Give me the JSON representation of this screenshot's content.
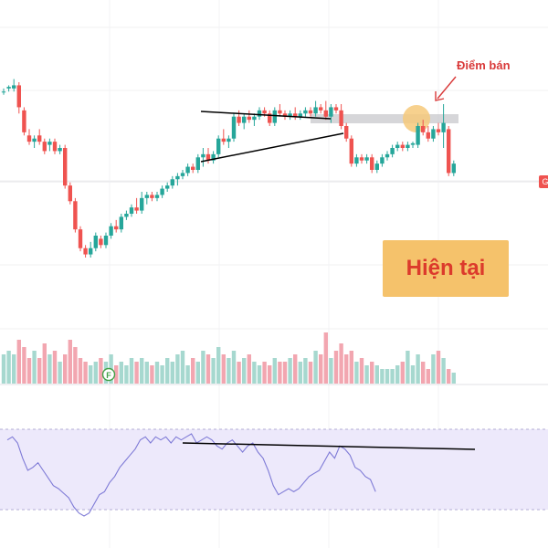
{
  "annotations": {
    "sell_point": "Điểm bán",
    "current": "Hiện tại",
    "marker": "F",
    "edge_badge": "G"
  },
  "colors": {
    "up": "#26a69a",
    "down": "#ef5350",
    "up_volume": "#a6d8cf",
    "down_volume": "#f2a6b0",
    "rsi_line": "#7e7ad6",
    "rsi_band": "#ede9fb",
    "trendline": "#000000",
    "resistance_zone": "#c8c8cc",
    "highlight_circle": "#f6c97a",
    "arrow": "#d93a3a"
  },
  "chart_data": [
    {
      "type": "candlestick",
      "panel": "price",
      "candles": [
        {
          "o": 100,
          "h": 101,
          "l": 99,
          "c": 100
        },
        {
          "o": 101,
          "h": 102,
          "l": 100,
          "c": 101.5
        },
        {
          "o": 101,
          "h": 104,
          "l": 100,
          "c": 102
        },
        {
          "o": 102,
          "h": 103,
          "l": 93,
          "c": 95
        },
        {
          "o": 94,
          "h": 95,
          "l": 86,
          "c": 87
        },
        {
          "o": 86,
          "h": 88,
          "l": 83,
          "c": 84
        },
        {
          "o": 84,
          "h": 86,
          "l": 82,
          "c": 85
        },
        {
          "o": 86,
          "h": 88,
          "l": 83,
          "c": 84
        },
        {
          "o": 84,
          "h": 85,
          "l": 80,
          "c": 81
        },
        {
          "o": 83,
          "h": 85,
          "l": 81,
          "c": 84
        },
        {
          "o": 84,
          "h": 85,
          "l": 80,
          "c": 81
        },
        {
          "o": 81,
          "h": 83,
          "l": 80,
          "c": 82
        },
        {
          "o": 82,
          "h": 83,
          "l": 69,
          "c": 70
        },
        {
          "o": 70,
          "h": 71,
          "l": 64,
          "c": 65
        },
        {
          "o": 65,
          "h": 66,
          "l": 55,
          "c": 56
        },
        {
          "o": 56,
          "h": 57,
          "l": 49,
          "c": 50
        },
        {
          "o": 50,
          "h": 51,
          "l": 47,
          "c": 48
        },
        {
          "o": 48,
          "h": 52,
          "l": 47,
          "c": 50
        },
        {
          "o": 50,
          "h": 55,
          "l": 49,
          "c": 54
        },
        {
          "o": 53,
          "h": 54,
          "l": 50,
          "c": 51
        },
        {
          "o": 51,
          "h": 55,
          "l": 50,
          "c": 54
        },
        {
          "o": 54,
          "h": 58,
          "l": 53,
          "c": 57
        },
        {
          "o": 57,
          "h": 59,
          "l": 55,
          "c": 56
        },
        {
          "o": 56,
          "h": 61,
          "l": 55,
          "c": 60
        },
        {
          "o": 60,
          "h": 62,
          "l": 59,
          "c": 61
        },
        {
          "o": 61,
          "h": 64,
          "l": 60,
          "c": 63
        },
        {
          "o": 63,
          "h": 66,
          "l": 61,
          "c": 62
        },
        {
          "o": 62,
          "h": 68,
          "l": 61,
          "c": 66
        },
        {
          "o": 66,
          "h": 68,
          "l": 64,
          "c": 67
        },
        {
          "o": 67,
          "h": 68,
          "l": 65,
          "c": 66
        },
        {
          "o": 66,
          "h": 68,
          "l": 65,
          "c": 67
        },
        {
          "o": 67,
          "h": 70,
          "l": 66,
          "c": 69
        },
        {
          "o": 69,
          "h": 71,
          "l": 68,
          "c": 70
        },
        {
          "o": 70,
          "h": 73,
          "l": 69,
          "c": 72
        },
        {
          "o": 72,
          "h": 74,
          "l": 70,
          "c": 73
        },
        {
          "o": 73,
          "h": 75,
          "l": 72,
          "c": 74
        },
        {
          "o": 74,
          "h": 77,
          "l": 73,
          "c": 76
        },
        {
          "o": 76,
          "h": 77,
          "l": 74,
          "c": 75
        },
        {
          "o": 75,
          "h": 80,
          "l": 74,
          "c": 79
        },
        {
          "o": 79,
          "h": 82,
          "l": 76,
          "c": 80
        },
        {
          "o": 80,
          "h": 82,
          "l": 77,
          "c": 78
        },
        {
          "o": 78,
          "h": 81,
          "l": 77,
          "c": 80
        },
        {
          "o": 80,
          "h": 86,
          "l": 79,
          "c": 85
        },
        {
          "o": 85,
          "h": 88,
          "l": 83,
          "c": 84
        },
        {
          "o": 84,
          "h": 86,
          "l": 82,
          "c": 85
        },
        {
          "o": 85,
          "h": 93,
          "l": 84,
          "c": 92
        },
        {
          "o": 92,
          "h": 94,
          "l": 89,
          "c": 90
        },
        {
          "o": 90,
          "h": 93,
          "l": 88,
          "c": 92
        },
        {
          "o": 92,
          "h": 94,
          "l": 90,
          "c": 91
        },
        {
          "o": 91,
          "h": 93,
          "l": 89,
          "c": 92
        },
        {
          "o": 92,
          "h": 95,
          "l": 91,
          "c": 94
        },
        {
          "o": 94,
          "h": 95,
          "l": 92,
          "c": 93
        },
        {
          "o": 93,
          "h": 94,
          "l": 89,
          "c": 90
        },
        {
          "o": 90,
          "h": 95,
          "l": 89,
          "c": 94
        },
        {
          "o": 94,
          "h": 96,
          "l": 92,
          "c": 93
        },
        {
          "o": 93,
          "h": 94,
          "l": 91,
          "c": 92
        },
        {
          "o": 92,
          "h": 94,
          "l": 91,
          "c": 93
        },
        {
          "o": 93,
          "h": 95,
          "l": 91,
          "c": 92
        },
        {
          "o": 92,
          "h": 94,
          "l": 91,
          "c": 93
        },
        {
          "o": 93,
          "h": 95,
          "l": 92,
          "c": 94
        },
        {
          "o": 94,
          "h": 95,
          "l": 92,
          "c": 93
        },
        {
          "o": 93,
          "h": 97,
          "l": 92,
          "c": 95
        },
        {
          "o": 95,
          "h": 96,
          "l": 93,
          "c": 94
        },
        {
          "o": 94,
          "h": 97,
          "l": 91,
          "c": 92
        },
        {
          "o": 92,
          "h": 96,
          "l": 90,
          "c": 95
        },
        {
          "o": 95,
          "h": 96,
          "l": 93,
          "c": 94
        },
        {
          "o": 94,
          "h": 96,
          "l": 88,
          "c": 89
        },
        {
          "o": 89,
          "h": 90,
          "l": 84,
          "c": 85
        },
        {
          "o": 85,
          "h": 86,
          "l": 76,
          "c": 77
        },
        {
          "o": 77,
          "h": 80,
          "l": 76,
          "c": 79
        },
        {
          "o": 79,
          "h": 80,
          "l": 77,
          "c": 78
        },
        {
          "o": 78,
          "h": 80,
          "l": 77,
          "c": 79
        },
        {
          "o": 79,
          "h": 80,
          "l": 74,
          "c": 75
        },
        {
          "o": 75,
          "h": 78,
          "l": 74,
          "c": 77
        },
        {
          "o": 77,
          "h": 80,
          "l": 76,
          "c": 79
        },
        {
          "o": 79,
          "h": 81,
          "l": 78,
          "c": 80
        },
        {
          "o": 80,
          "h": 83,
          "l": 79,
          "c": 82
        },
        {
          "o": 82,
          "h": 84,
          "l": 81,
          "c": 83
        },
        {
          "o": 83,
          "h": 84,
          "l": 81,
          "c": 82
        },
        {
          "o": 82,
          "h": 84,
          "l": 81,
          "c": 83
        },
        {
          "o": 83,
          "h": 84,
          "l": 82,
          "c": 83.5
        },
        {
          "o": 83,
          "h": 90,
          "l": 82,
          "c": 89
        },
        {
          "o": 89,
          "h": 91,
          "l": 86,
          "c": 87
        },
        {
          "o": 87,
          "h": 89,
          "l": 84,
          "c": 85
        },
        {
          "o": 85,
          "h": 89,
          "l": 84,
          "c": 88
        },
        {
          "o": 88,
          "h": 90,
          "l": 86,
          "c": 87
        },
        {
          "o": 87,
          "h": 96,
          "l": 82,
          "c": 90
        },
        {
          "o": 88,
          "h": 89,
          "l": 73,
          "c": 74
        },
        {
          "o": 74,
          "h": 78,
          "l": 73,
          "c": 77
        }
      ]
    },
    {
      "type": "bar",
      "panel": "volume",
      "values": [
        8,
        9,
        8,
        12,
        10,
        7,
        9,
        7,
        11,
        8,
        9,
        6,
        8,
        12,
        10,
        7,
        6,
        5,
        6,
        7,
        6,
        8,
        5,
        6,
        5,
        7,
        6,
        7,
        6,
        5,
        6,
        5,
        7,
        6,
        8,
        9,
        5,
        7,
        6,
        9,
        8,
        7,
        10,
        8,
        7,
        9,
        6,
        7,
        8,
        6,
        5,
        6,
        5,
        7,
        6,
        6,
        7,
        8,
        6,
        7,
        6,
        9,
        8,
        14,
        7,
        9,
        11,
        8,
        9,
        6,
        7,
        5,
        6,
        5,
        4,
        4,
        4,
        5,
        6,
        9,
        5,
        8,
        6,
        4,
        8,
        9,
        7,
        4,
        3
      ]
    },
    {
      "type": "line",
      "panel": "rsi",
      "values": [
        70,
        72,
        68,
        58,
        50,
        52,
        55,
        50,
        45,
        40,
        38,
        35,
        32,
        26,
        22,
        20,
        22,
        28,
        34,
        36,
        42,
        46,
        52,
        56,
        60,
        64,
        70,
        72,
        68,
        72,
        70,
        72,
        68,
        72,
        70,
        72,
        74,
        68,
        70,
        72,
        70,
        66,
        64,
        68,
        70,
        66,
        62,
        66,
        68,
        62,
        58,
        50,
        40,
        34,
        36,
        38,
        36,
        38,
        42,
        46,
        48,
        50,
        56,
        62,
        58,
        66,
        64,
        60,
        52,
        50,
        46,
        44,
        36
      ]
    }
  ]
}
